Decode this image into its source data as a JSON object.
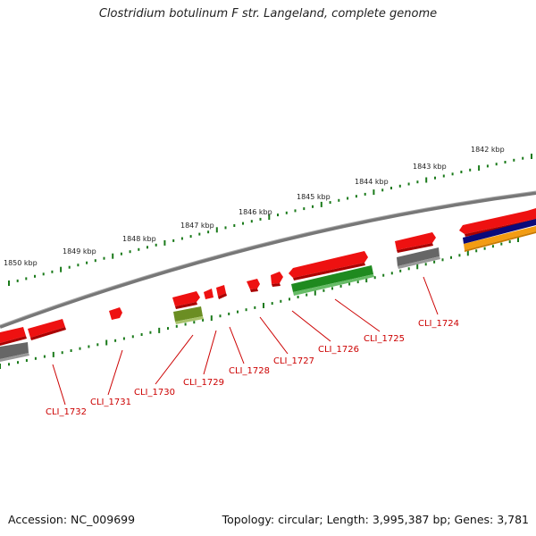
{
  "title": "Clostridium botulinum F str. Langeland, complete genome",
  "footer": {
    "accession": "Accession: NC_009699",
    "summary": "Topology: circular; Length: 3,995,387 bp; Genes: 3,781"
  },
  "colors": {
    "cds": "#ee1111",
    "cds_dark": "#aa0000",
    "gray_feature": "#666666",
    "green_feature": "#1f8a1f",
    "olive_feature": "#6b8e23",
    "navy_feature": "#0a0a7a",
    "orange_feature": "#f39c12",
    "tick": "#1a7a1a",
    "backbone": "#888888",
    "gene_label": "#cc0000"
  },
  "scale_labels": [
    "1842 kbp",
    "1843 kbp",
    "1844 kbp",
    "1845 kbp",
    "1846 kbp",
    "1847 kbp",
    "1848 kbp",
    "1849 kbp",
    "1850 kbp"
  ],
  "gene_labels": [
    "CLI_1724",
    "CLI_1725",
    "CLI_1726",
    "CLI_1727",
    "CLI_1728",
    "CLI_1729",
    "CLI_1730",
    "CLI_1731",
    "CLI_1732"
  ]
}
